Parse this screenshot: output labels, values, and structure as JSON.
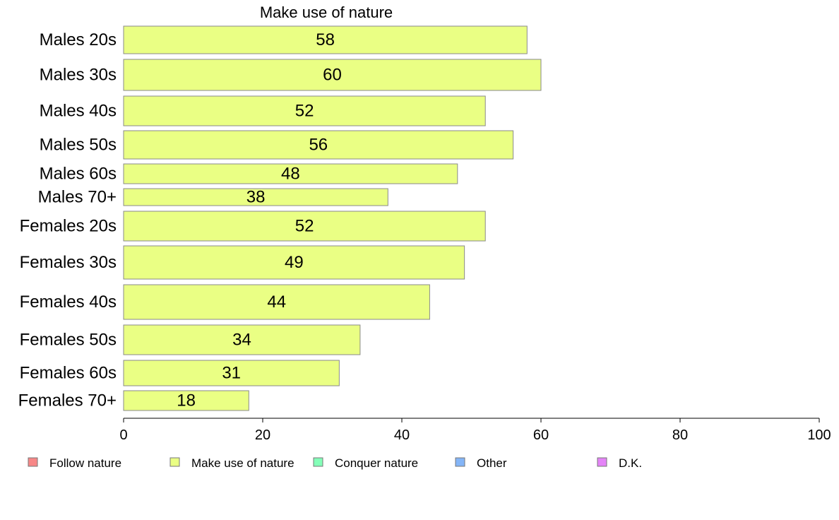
{
  "chart_data": {
    "type": "bar",
    "orientation": "horizontal",
    "title": "Make use of nature",
    "categories": [
      "Males 20s",
      "Males 30s",
      "Males 40s",
      "Males 50s",
      "Males 60s",
      "Males 70+",
      "Females 20s",
      "Females 30s",
      "Females 40s",
      "Females 50s",
      "Females 60s",
      "Females 70+"
    ],
    "series": [
      {
        "name": "Make use of nature",
        "values": [
          58,
          60,
          52,
          56,
          48,
          38,
          52,
          49,
          44,
          34,
          31,
          18
        ],
        "color": "#eaff84"
      }
    ],
    "data_labels": [
      "58",
      "60",
      "52",
      "56",
      "48",
      "38",
      "52",
      "49",
      "44",
      "34",
      "31",
      "18"
    ],
    "xlim": [
      0,
      100
    ],
    "xticks": [
      0,
      20,
      40,
      60,
      80,
      100
    ],
    "legend": {
      "placement": "bottom",
      "entries": [
        {
          "label": "Follow nature",
          "color": "#f78787"
        },
        {
          "label": "Make use of nature",
          "color": "#eaff84"
        },
        {
          "label": "Conquer nature",
          "color": "#84ffb8"
        },
        {
          "label": "Other",
          "color": "#84b5f7"
        },
        {
          "label": "D.K.",
          "color": "#e484f7"
        }
      ]
    },
    "grid": false
  }
}
